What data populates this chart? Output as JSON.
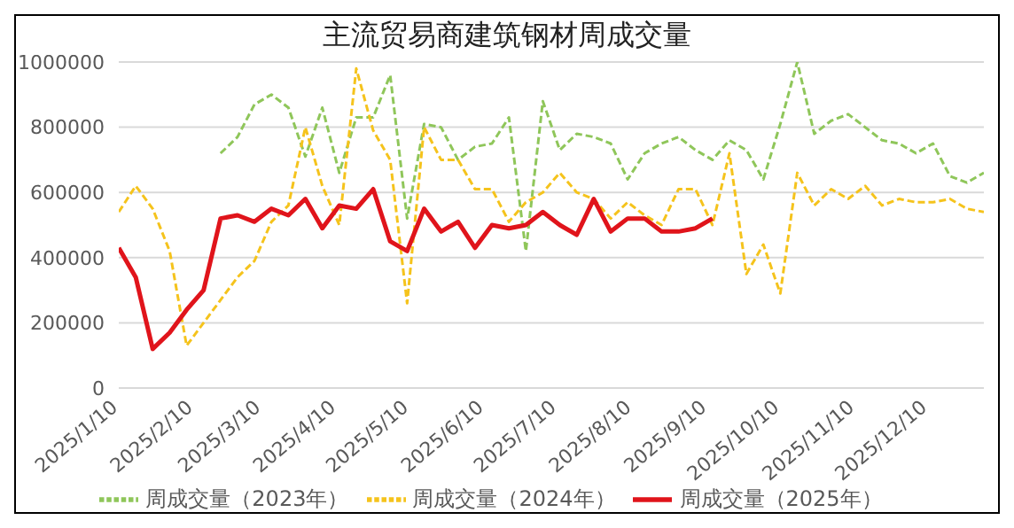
{
  "chart_data": {
    "type": "line",
    "title": "主流贸易商建筑钢材周成交量",
    "x": [
      "2025-01-10",
      "2025-01-17",
      "2025-01-24",
      "2025-01-31",
      "2025-02-07",
      "2025-02-14",
      "2025-02-21",
      "2025-02-28",
      "2025-03-07",
      "2025-03-14",
      "2025-03-21",
      "2025-03-28",
      "2025-04-04",
      "2025-04-11",
      "2025-04-18",
      "2025-04-25",
      "2025-05-02",
      "2025-05-09",
      "2025-05-16",
      "2025-05-23",
      "2025-05-30",
      "2025-06-06",
      "2025-06-13",
      "2025-06-20",
      "2025-06-27",
      "2025-07-04",
      "2025-07-11",
      "2025-07-18",
      "2025-07-25",
      "2025-08-01",
      "2025-08-08",
      "2025-08-15",
      "2025-08-22",
      "2025-08-29",
      "2025-09-05",
      "2025-09-12",
      "2025-09-19",
      "2025-09-26",
      "2025-10-03",
      "2025-10-10",
      "2025-10-17",
      "2025-10-24",
      "2025-10-31",
      "2025-11-07",
      "2025-11-14",
      "2025-11-21",
      "2025-11-28",
      "2025-12-05",
      "2025-12-12",
      "2025-12-19",
      "2025-12-26",
      "2026-01-02"
    ],
    "series": [
      {
        "name": "周成交量（2023年）",
        "color": "#8fc65a",
        "line_style": "dashed",
        "values": [
          null,
          null,
          null,
          null,
          null,
          null,
          720000,
          770000,
          870000,
          900000,
          860000,
          710000,
          860000,
          660000,
          830000,
          830000,
          960000,
          520000,
          810000,
          800000,
          700000,
          740000,
          750000,
          830000,
          420000,
          880000,
          730000,
          780000,
          770000,
          750000,
          640000,
          720000,
          750000,
          770000,
          730000,
          700000,
          760000,
          730000,
          640000,
          810000,
          1000000,
          780000,
          820000,
          840000,
          800000,
          760000,
          750000,
          720000,
          750000,
          650000,
          630000,
          660000
        ]
      },
      {
        "name": "周成交量（2024年）",
        "color": "#f5c31c",
        "line_style": "dashed",
        "values": [
          540000,
          620000,
          550000,
          420000,
          130000,
          200000,
          270000,
          340000,
          390000,
          510000,
          560000,
          800000,
          620000,
          500000,
          980000,
          790000,
          700000,
          260000,
          800000,
          700000,
          700000,
          610000,
          610000,
          510000,
          570000,
          600000,
          660000,
          600000,
          580000,
          520000,
          570000,
          530000,
          500000,
          610000,
          610000,
          500000,
          720000,
          350000,
          440000,
          290000,
          660000,
          560000,
          610000,
          580000,
          620000,
          560000,
          580000,
          570000,
          570000,
          580000,
          550000,
          540000
        ]
      },
      {
        "name": "周成交量（2025年）",
        "color": "#e0141b",
        "line_style": "solid",
        "values": [
          430000,
          340000,
          120000,
          170000,
          240000,
          300000,
          520000,
          530000,
          510000,
          550000,
          530000,
          580000,
          490000,
          560000,
          550000,
          610000,
          450000,
          420000,
          550000,
          480000,
          510000,
          430000,
          500000,
          490000,
          500000,
          540000,
          500000,
          470000,
          580000,
          480000,
          520000,
          520000,
          480000,
          480000,
          490000,
          520000,
          null,
          null,
          null,
          null,
          null,
          null,
          null,
          null,
          null,
          null,
          null,
          null,
          null,
          null,
          null,
          null
        ]
      }
    ],
    "xlim": [
      "2025-01-10",
      "2026-01-02"
    ],
    "xticks": [
      {
        "value": "2025-01-10",
        "label": "2025/1/10"
      },
      {
        "value": "2025-02-10",
        "label": "2025/2/10"
      },
      {
        "value": "2025-03-10",
        "label": "2025/3/10"
      },
      {
        "value": "2025-04-10",
        "label": "2025/4/10"
      },
      {
        "value": "2025-05-10",
        "label": "2025/5/10"
      },
      {
        "value": "2025-06-10",
        "label": "2025/6/10"
      },
      {
        "value": "2025-07-10",
        "label": "2025/7/10"
      },
      {
        "value": "2025-08-10",
        "label": "2025/8/10"
      },
      {
        "value": "2025-09-10",
        "label": "2025/9/10"
      },
      {
        "value": "2025-10-10",
        "label": "2025/10/10"
      },
      {
        "value": "2025-11-10",
        "label": "2025/11/10"
      },
      {
        "value": "2025-12-10",
        "label": "2025/12/10"
      }
    ],
    "ylim": [
      0,
      1000000
    ],
    "yticks": [
      0,
      200000,
      400000,
      600000,
      800000,
      1000000
    ],
    "grid": "y",
    "legend": "bottom",
    "marker": "none"
  }
}
